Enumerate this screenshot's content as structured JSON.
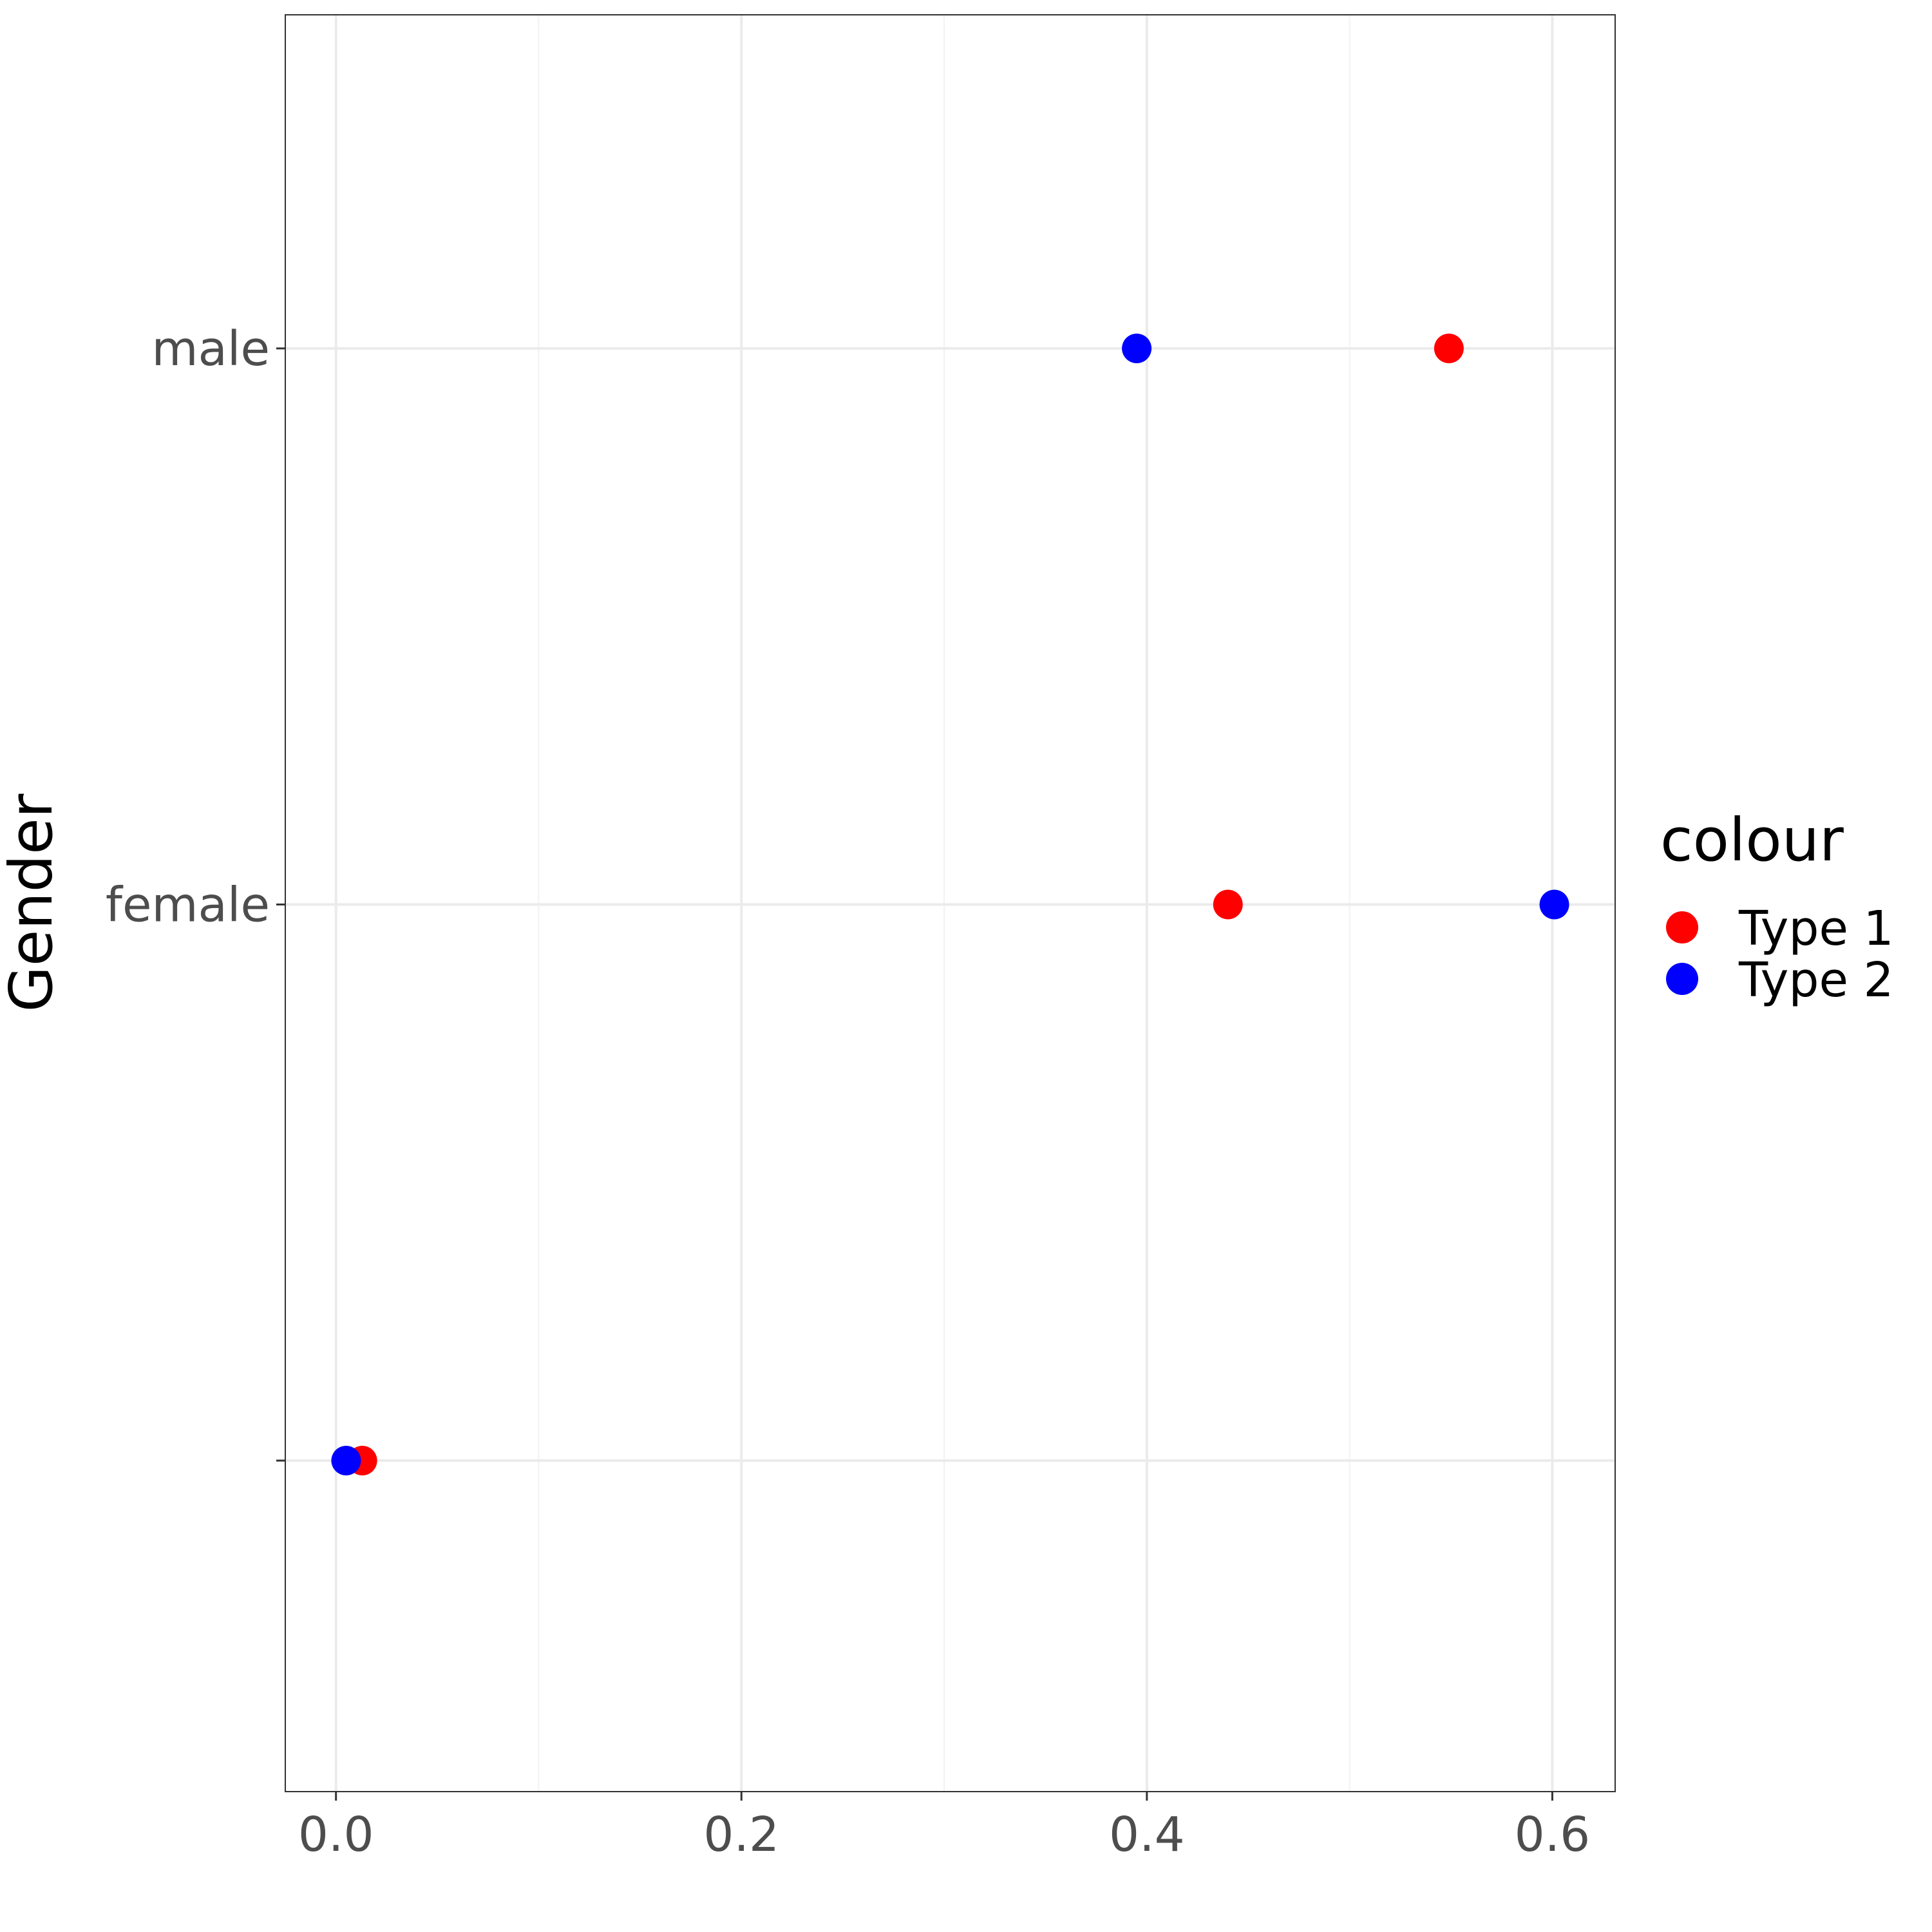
{
  "chart_data": {
    "type": "scatter",
    "title": "",
    "xlabel": "",
    "ylabel": "Gender",
    "xlim": [
      -0.025,
      0.631
    ],
    "x_ticks": [
      0.0,
      0.2,
      0.4,
      0.6
    ],
    "x_tick_labels": [
      "0.0",
      "0.2",
      "0.4",
      "0.6"
    ],
    "categories": [
      "",
      "female",
      "male"
    ],
    "grid": true,
    "legend": {
      "title": "colour",
      "position": "right",
      "entries": [
        {
          "label": "Type 1",
          "color": "#ff0000"
        },
        {
          "label": "Type 2",
          "color": "#0000ff"
        }
      ]
    },
    "series": [
      {
        "name": "Type 1",
        "color": "#ff0000",
        "points": [
          {
            "x": 0.013,
            "y": ""
          },
          {
            "x": 0.44,
            "y": "female"
          },
          {
            "x": 0.549,
            "y": "male"
          }
        ]
      },
      {
        "name": "Type 2",
        "color": "#0000ff",
        "points": [
          {
            "x": 0.005,
            "y": ""
          },
          {
            "x": 0.601,
            "y": "female"
          },
          {
            "x": 0.395,
            "y": "male"
          }
        ]
      }
    ]
  }
}
